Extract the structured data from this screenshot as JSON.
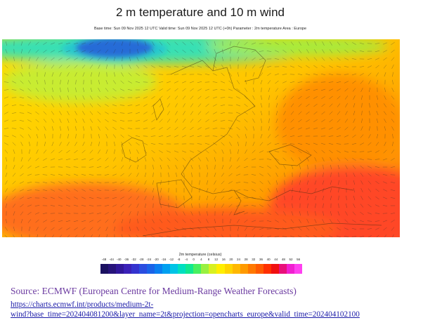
{
  "title": "2 m temperature and 10 m wind",
  "subtitle": "Base time: Sun 09 Nov 2025 12 UTC Valid time: Sun 09 Nov 2025 12 UTC (+0h) Parameter : 2m temperature Area : Europe",
  "legend": {
    "title": "2m temperature (celsius)",
    "ticks": [
      "-48",
      "-44",
      "-40",
      "-36",
      "-32",
      "-28",
      "-24",
      "-20",
      "-16",
      "-12",
      "-8",
      "-4",
      "0",
      "4",
      "8",
      "12",
      "16",
      "20",
      "24",
      "28",
      "32",
      "36",
      "40",
      "44",
      "48",
      "52",
      "56"
    ],
    "colors": [
      "#1a1060",
      "#27137a",
      "#30179a",
      "#3a21b8",
      "#3433cf",
      "#2a4de0",
      "#1a63e8",
      "#0a7ff0",
      "#00a0f0",
      "#00c4e6",
      "#00dfc0",
      "#10e890",
      "#48f060",
      "#98f040",
      "#d8f020",
      "#ffee00",
      "#ffd400",
      "#ffb800",
      "#ff9a00",
      "#ff7800",
      "#ff5a00",
      "#ff3000",
      "#f01010",
      "#e8107a",
      "#f020d0",
      "#ff40f0"
    ]
  },
  "map": {
    "region": "Europe",
    "colors": {
      "cold_deep": "#3324c8",
      "cold": "#19b4e6",
      "cool": "#37e0b4",
      "mild": "#a6ec3c",
      "warm_yellow": "#ffe500",
      "warm": "#ffc000",
      "hot": "#ff9600",
      "hotter": "#ff6e1e",
      "hottest": "#ff4628"
    }
  },
  "source": {
    "text": "Source: ECMWF (European Centre for Medium-Range Weather Forecasts)",
    "url_line1": "https://charts.ecmwf.int/products/medium-2t-",
    "url_line2": "wind?base_time=202404081200&layer_name=2t&projection=opencharts_europe&valid_time=202404102100"
  }
}
